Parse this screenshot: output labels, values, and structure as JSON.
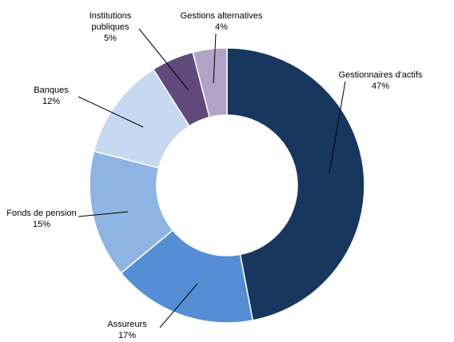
{
  "chart_data": {
    "type": "pie",
    "variant": "donut",
    "title": "",
    "slices": [
      {
        "label": "Gestionnaires d'actifs",
        "display": "47%",
        "value": 47,
        "color": "#17375E"
      },
      {
        "label": "Assureurs",
        "display": "17%",
        "value": 17,
        "color": "#558ED5"
      },
      {
        "label": "Fonds de pension",
        "display": "15%",
        "value": 15,
        "color": "#8EB4E3"
      },
      {
        "label": "Banques",
        "display": "12%",
        "value": 12,
        "color": "#C6D9F1"
      },
      {
        "label": "Institutions publiques",
        "display": "5%",
        "value": 5,
        "color": "#604A7B"
      },
      {
        "label": "Gestions alternatives",
        "display": "4%",
        "value": 4,
        "color": "#B3A2C7"
      }
    ]
  }
}
